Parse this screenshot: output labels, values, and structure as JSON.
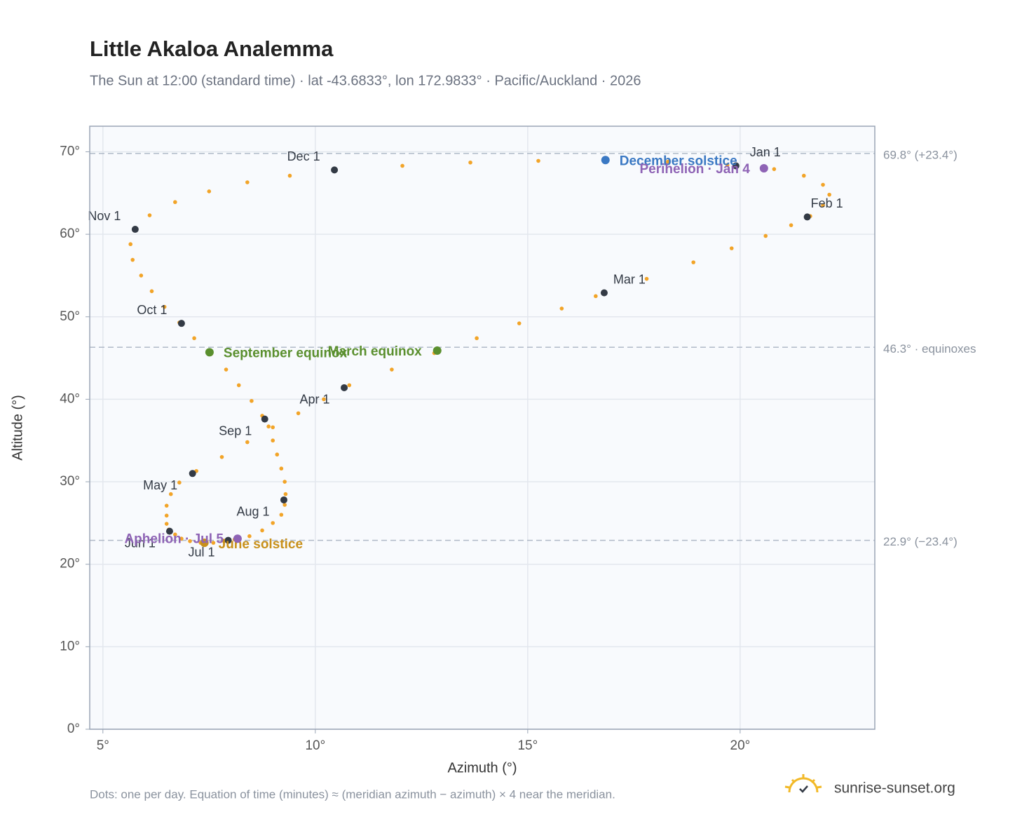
{
  "chart_data": {
    "type": "scatter",
    "title": "Little Akaloa Analemma",
    "subtitle": "The Sun at 12:00 (standard time) · lat -43.6833°, lon 172.9833° · Pacific/Auckland · 2026",
    "xlabel": "Azimuth (°)",
    "ylabel": "Altitude (°)",
    "xlim": [
      4.69,
      23.17
    ],
    "ylim": [
      0,
      73.1
    ],
    "xticks": [
      {
        "value": 5,
        "label": "5°"
      },
      {
        "value": 10,
        "label": "10°"
      },
      {
        "value": 15,
        "label": "15°"
      },
      {
        "value": 20,
        "label": "20°"
      }
    ],
    "yticks": [
      {
        "value": 0,
        "label": "0°"
      },
      {
        "value": 10,
        "label": "10°"
      },
      {
        "value": 20,
        "label": "20°"
      },
      {
        "value": 30,
        "label": "30°"
      },
      {
        "value": 40,
        "label": "40°"
      },
      {
        "value": 50,
        "label": "50°"
      },
      {
        "value": 60,
        "label": "60°"
      },
      {
        "value": 70,
        "label": "70°"
      }
    ],
    "grid": true,
    "series": [
      {
        "color": "#f2a428",
        "x": [
          19.9,
          20.8,
          21.5,
          21.95,
          22.1,
          21.95,
          21.65,
          21.2,
          20.6,
          19.8,
          18.9,
          17.8,
          16.6,
          15.8,
          14.8,
          13.8,
          12.8,
          11.8,
          10.8,
          10.2,
          9.6,
          9.0,
          8.4,
          7.8,
          7.2,
          6.8,
          6.6,
          6.5,
          6.5,
          6.5,
          6.55,
          6.7,
          6.85,
          7.05,
          7.3,
          7.6,
          7.85,
          8.1,
          8.45,
          8.75,
          9.0,
          9.2,
          9.28,
          9.3,
          9.28,
          9.2,
          9.1,
          9.0,
          8.9,
          8.75,
          8.5,
          8.2,
          7.9,
          7.55,
          7.15,
          6.8,
          6.45,
          6.15,
          5.9,
          5.7,
          5.65,
          5.76,
          6.1,
          6.7,
          7.5,
          8.4,
          9.4,
          10.45,
          12.05,
          13.65,
          15.25,
          16.85,
          18.3,
          19.7
        ],
        "y": [
          68.3,
          67.9,
          67.1,
          66.0,
          64.8,
          63.5,
          62.2,
          61.1,
          59.8,
          58.3,
          56.6,
          54.6,
          52.5,
          51.0,
          49.2,
          47.4,
          45.6,
          43.6,
          41.7,
          40.0,
          38.3,
          36.6,
          34.8,
          33.0,
          31.3,
          29.9,
          28.5,
          27.1,
          25.9,
          24.9,
          24.2,
          23.6,
          23.1,
          22.8,
          22.6,
          22.6,
          22.8,
          23.0,
          23.4,
          24.1,
          25.0,
          26.0,
          27.2,
          28.5,
          30.0,
          31.6,
          33.3,
          35.0,
          36.7,
          38.0,
          39.8,
          41.7,
          43.6,
          45.5,
          47.4,
          49.3,
          51.2,
          53.1,
          55.0,
          56.9,
          58.8,
          60.6,
          62.3,
          63.9,
          65.2,
          66.3,
          67.1,
          67.8,
          68.3,
          68.7,
          68.9,
          69.0,
          68.8,
          68.4
        ]
      }
    ],
    "month_markers": {
      "color": "#333a45",
      "labels": [
        "Jan 1",
        "Feb 1",
        "Mar 1",
        "Apr 1",
        "May 1",
        "Jun 1",
        "Jul 1",
        "Aug 1",
        "Sep 1",
        "Oct 1",
        "Nov 1",
        "Dec 1"
      ],
      "x": [
        19.9,
        21.58,
        16.8,
        10.68,
        7.11,
        6.57,
        7.95,
        9.26,
        8.81,
        6.85,
        5.76,
        10.45
      ],
      "y": [
        68.3,
        62.1,
        52.9,
        41.4,
        31.0,
        24.0,
        22.9,
        27.8,
        37.6,
        49.2,
        60.6,
        67.8
      ]
    },
    "events": [
      {
        "label": "December solstice",
        "x": 16.83,
        "y": 69.0,
        "color": "#3a78c3"
      },
      {
        "label": "Perihelion · Jan 4",
        "x": 20.56,
        "y": 68.0,
        "color": "#8e63b5"
      },
      {
        "label": "March equinox",
        "x": 12.87,
        "y": 45.9,
        "color": "#5a8f2e"
      },
      {
        "label": "September equinox",
        "x": 7.51,
        "y": 45.7,
        "color": "#5a8f2e"
      },
      {
        "label": "June solstice",
        "x": 7.39,
        "y": 22.6,
        "color": "#c8901a"
      },
      {
        "label": "Aphelion · Jul 5",
        "x": 8.17,
        "y": 23.1,
        "color": "#8e63b5"
      }
    ],
    "reference_lines": [
      {
        "value": 69.8,
        "label": "69.8° (+23.4°)"
      },
      {
        "value": 46.3,
        "label": "46.3° · equinoxes"
      },
      {
        "value": 22.9,
        "label": "22.9° (−23.4°)"
      }
    ],
    "note": "Dots: one per day. Equation of time (minutes) ≈ (meridian azimuth − azimuth) × 4 near the meridian.",
    "brand": "sunrise-sunset.org"
  }
}
